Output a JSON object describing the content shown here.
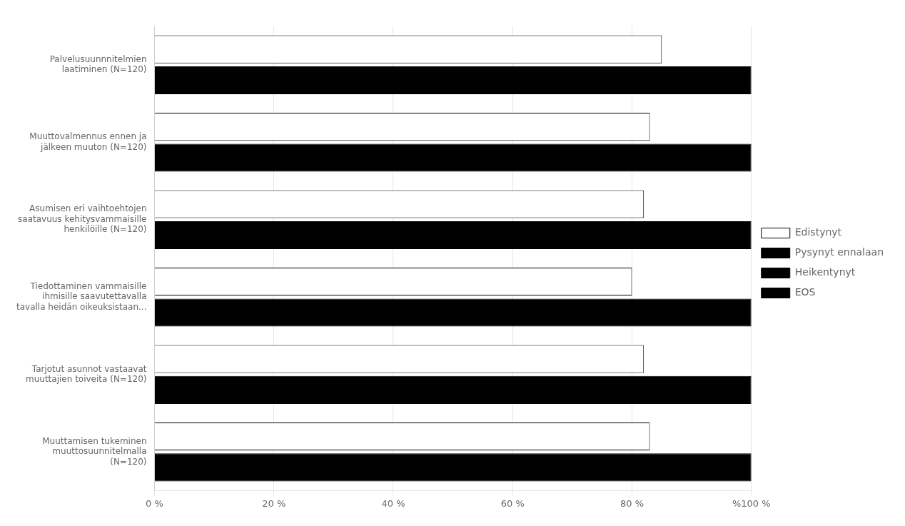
{
  "chart_data": {
    "type": "bar",
    "orientation": "horizontal",
    "categories": [
      "Palvelusuunnnitelmien\nlaatiminen (N=120)",
      "Muuttovalmennus ennen ja\njälkeen muuton (N=120)",
      "Asumisen eri vaihtoehtojen\nsaatavuus kehitysvammaisille\nhenkilöille (N=120)",
      "Tiedottaminen vammaisille\nihmisille saavutettavalla\ntavalla heidän oikeuksistaan...",
      "Tarjotut asunnot vastaavat\nmuuttajien toiveita (N=120)",
      "Muuttamisen tukeminen\nmuuttosuunnitelmalla\n(N=120)"
    ],
    "series": [
      {
        "name": "Edistynyt",
        "color": "#ffffff",
        "values": [
          85,
          83,
          82,
          80,
          82,
          83
        ]
      },
      {
        "name": "Pysynyt ennalaan",
        "color": "#000000",
        "values": [
          100,
          100,
          100,
          100,
          100,
          100
        ]
      },
      {
        "name": "Heikentynyt",
        "color": "#000000",
        "values": [
          null,
          null,
          null,
          null,
          null,
          null
        ]
      },
      {
        "name": "EOS",
        "color": "#000000",
        "values": [
          null,
          null,
          null,
          null,
          null,
          null
        ]
      }
    ],
    "xlim": [
      0,
      100
    ],
    "xticks": [
      {
        "value": 0,
        "label": "0 %"
      },
      {
        "value": 20,
        "label": "20 %"
      },
      {
        "value": 40,
        "label": "40 %"
      },
      {
        "value": 60,
        "label": "60 %"
      },
      {
        "value": 80,
        "label": "80 %"
      },
      {
        "value": 100,
        "label": "%100 %"
      }
    ],
    "grid": true,
    "legend": "right"
  }
}
